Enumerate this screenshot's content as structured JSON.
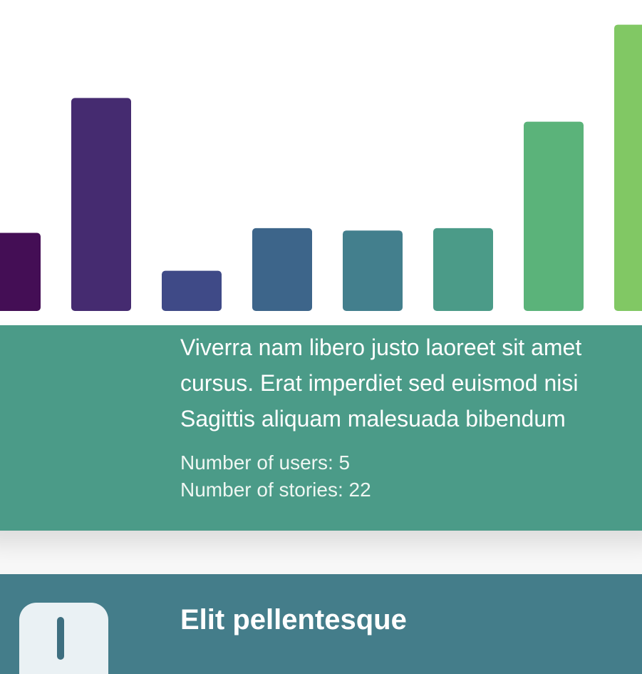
{
  "colors": {
    "card1_bg": "#4b9b88",
    "card2_bg": "#447d8a"
  },
  "chart_data": {
    "type": "bar",
    "series": [
      {
        "values": [
          33,
          90,
          17,
          35,
          34,
          35,
          80,
          121
        ],
        "colors": [
          "#440e55",
          "#452b70",
          "#3f4a87",
          "#3d658a",
          "#437f8d",
          "#4b9b88",
          "#5bb37a",
          "#81c864"
        ]
      }
    ],
    "ylim": [
      0,
      126
    ]
  },
  "card1": {
    "lines": [
      "Viverra nam libero justo laoreet sit amet",
      "cursus. Erat imperdiet sed euismod nisi",
      "Sagittis aliquam malesuada bibendum"
    ],
    "users": "Number of users: 5",
    "stories": "Number of stories: 22"
  },
  "card2": {
    "title": "Elit pellentesque",
    "icon": "exclamation-icon"
  }
}
